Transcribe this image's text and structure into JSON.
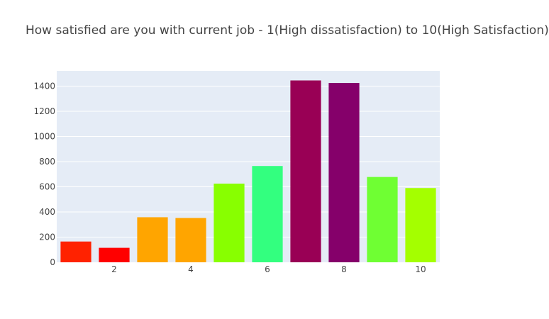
{
  "chart_data": {
    "type": "bar",
    "title": "How satisfied are you with current job - 1(High dissatisfaction) to 10(High Satisfaction)",
    "xlabel": "",
    "ylabel": "",
    "categories": [
      1,
      2,
      3,
      4,
      5,
      6,
      7,
      8,
      9,
      10
    ],
    "values": [
      165,
      115,
      358,
      352,
      625,
      765,
      1445,
      1425,
      678,
      590
    ],
    "colors": [
      "#ff2200",
      "#ff0000",
      "#ffa500",
      "#ffa500",
      "#88ff00",
      "#33ff7f",
      "#990055",
      "#85006a",
      "#6fff33",
      "#a4ff00"
    ],
    "xticks": [
      2,
      4,
      6,
      8,
      10
    ],
    "yticks": [
      0,
      200,
      400,
      600,
      800,
      1000,
      1200,
      1400
    ],
    "ylim": [
      0,
      1521
    ],
    "xlim": [
      0.5,
      10.5
    ],
    "grid": true,
    "background": "#e5ecf6"
  }
}
